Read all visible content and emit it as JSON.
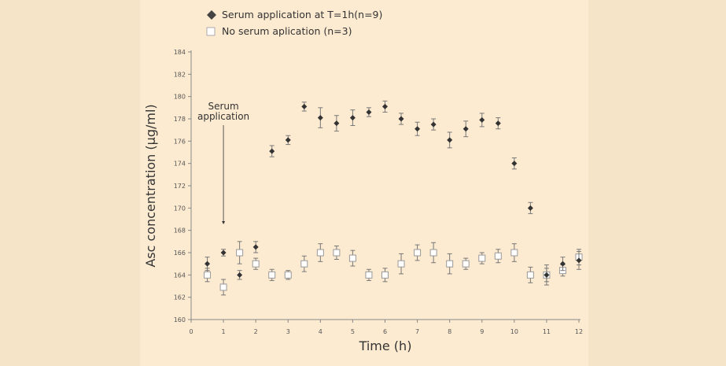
{
  "chart_data": {
    "type": "scatter",
    "title": "",
    "xlabel": "Time (h)",
    "ylabel": "Asc concentration (μg/ml)",
    "xlim": [
      0,
      12
    ],
    "ylim": [
      160,
      184
    ],
    "xticks": [
      0,
      1,
      2,
      3,
      4,
      5,
      6,
      7,
      8,
      9,
      10,
      11,
      12
    ],
    "yticks": [
      160,
      162,
      164,
      166,
      168,
      170,
      172,
      174,
      176,
      178,
      180,
      182,
      184
    ],
    "grid": false,
    "legend_placement": "top-left",
    "annotation": {
      "text_line1": "Serum",
      "text_line2": "application",
      "x": 1
    },
    "series": [
      {
        "name": "Serum application at T=1h(n=9)",
        "marker": "diamond",
        "color": "#333333",
        "x": [
          0.5,
          1,
          1.5,
          2,
          2.5,
          3,
          3.5,
          4,
          4.5,
          5,
          5.5,
          6,
          6.5,
          7,
          7.5,
          8,
          8.5,
          9,
          9.5,
          10,
          10.5,
          11,
          11.5,
          12
        ],
        "y": [
          165.0,
          166.0,
          164.0,
          166.5,
          175.1,
          176.1,
          179.1,
          178.1,
          177.6,
          178.1,
          178.6,
          179.1,
          178.0,
          177.1,
          177.5,
          176.1,
          177.1,
          177.9,
          177.6,
          174.0,
          170.0,
          164.0,
          165.0,
          165.3
        ],
        "err": [
          0.6,
          0.3,
          0.4,
          0.5,
          0.5,
          0.4,
          0.4,
          0.9,
          0.7,
          0.7,
          0.4,
          0.5,
          0.5,
          0.6,
          0.5,
          0.7,
          0.7,
          0.6,
          0.5,
          0.5,
          0.5,
          0.9,
          0.6,
          0.8
        ]
      },
      {
        "name": "No serum aplication (n=3)",
        "marker": "square",
        "color": "#ffffff",
        "x": [
          0.5,
          1,
          1.5,
          2,
          2.5,
          3,
          3.5,
          4,
          4.5,
          5,
          5.5,
          6,
          6.5,
          7,
          7.5,
          8,
          8.5,
          9,
          9.5,
          10,
          10.5,
          11,
          11.5,
          12
        ],
        "y": [
          164.0,
          162.9,
          166.0,
          165.0,
          164.0,
          164.0,
          165.0,
          166.0,
          166.0,
          165.5,
          164.0,
          164.0,
          165.0,
          166.0,
          166.0,
          165.0,
          165.0,
          165.5,
          165.7,
          166.0,
          164.0,
          164.0,
          164.4,
          165.6
        ],
        "err": [
          0.6,
          0.7,
          1.0,
          0.5,
          0.5,
          0.4,
          0.7,
          0.8,
          0.6,
          0.7,
          0.5,
          0.6,
          0.9,
          0.7,
          0.9,
          0.9,
          0.5,
          0.5,
          0.6,
          0.8,
          0.7,
          0.6,
          0.5,
          0.7
        ]
      }
    ]
  }
}
